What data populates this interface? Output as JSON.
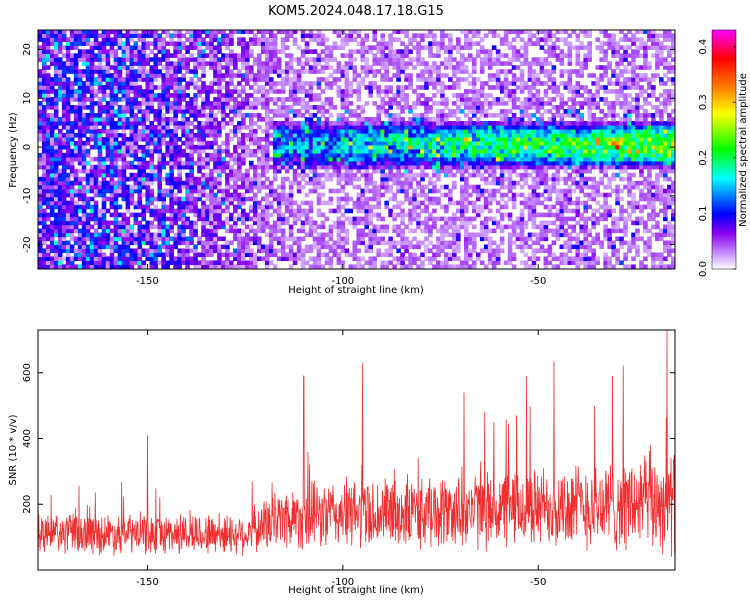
{
  "chart_data": [
    {
      "type": "heatmap",
      "title": "KOM5.2024.048.17.18.G15",
      "xlabel": "Height of straight line (km)",
      "ylabel": "Frequency (Hz)",
      "xlim": [
        -178,
        -15
      ],
      "ylim": [
        -25,
        24
      ],
      "x_ticks": [
        "-150",
        "-100",
        "-50"
      ],
      "x_tick_values": [
        -150,
        -100,
        -50
      ],
      "y_ticks": [
        "20",
        "10",
        "0",
        "-10",
        "-20"
      ],
      "y_tick_values": [
        20,
        10,
        0,
        -10,
        -20
      ],
      "colorbar": {
        "label": "Normalized spectral amplitude",
        "range": [
          0.0,
          0.43
        ],
        "ticks": [
          "0.0",
          "0.1",
          "0.2",
          "0.3",
          "0.4"
        ],
        "tick_values": [
          0.0,
          0.1,
          0.2,
          0.3,
          0.4
        ],
        "colors": [
          "#ffffff",
          "#cc99ff",
          "#8800ee",
          "#0000ff",
          "#00ffff",
          "#00ff00",
          "#ffff00",
          "#ff8800",
          "#ff0000",
          "#ff00ff"
        ]
      },
      "band": {
        "x_start": -118,
        "x_end": -15,
        "center_hz": [
          0,
          0,
          0
        ],
        "center_x": [
          -118,
          -60,
          -15
        ],
        "half_width_hz": 5
      },
      "grid": false
    },
    {
      "type": "line",
      "xlabel": "Height of straight line (km)",
      "ylabel": "SNR (10 * v/v)",
      "xlim": [
        -178,
        -15
      ],
      "ylim": [
        0,
        730
      ],
      "x_ticks": [
        "-150",
        "-100",
        "-50"
      ],
      "x_tick_values": [
        -150,
        -100,
        -50
      ],
      "y_ticks": [
        "200",
        "400",
        "600"
      ],
      "y_tick_values": [
        200,
        400,
        600
      ],
      "color": "#f03030",
      "envelope": {
        "x": [
          -178,
          -150,
          -125,
          -115,
          -100,
          -75,
          -50,
          -25,
          -15
        ],
        "mean": [
          110,
          110,
          110,
          160,
          170,
          175,
          190,
          200,
          210
        ],
        "spread": [
          70,
          70,
          70,
          110,
          120,
          125,
          140,
          160,
          180
        ]
      },
      "peaks": {
        "x": [
          -150,
          -110,
          -95,
          -69,
          -53,
          -46,
          -31,
          -17
        ],
        "y": [
          410,
          590,
          630,
          540,
          590,
          635,
          590,
          730
        ]
      },
      "grid": false
    }
  ]
}
